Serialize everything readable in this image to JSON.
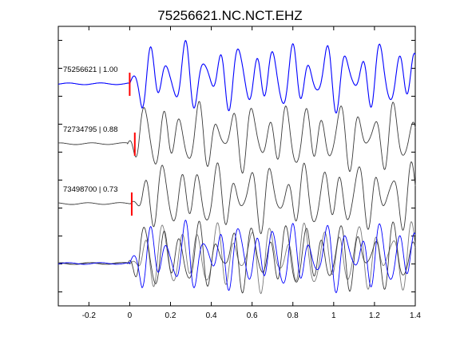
{
  "chart_data": {
    "type": "line",
    "title": "75256621.NC.NCT.EHZ",
    "xlabel": "",
    "ylabel": "",
    "xlim": [
      -0.35,
      1.4
    ],
    "x_ticks": [
      -0.2,
      0,
      0.2,
      0.4,
      0.6,
      0.8,
      1,
      1.2,
      1.4
    ],
    "x_tick_labels": [
      "-0.2",
      "0",
      "0.2",
      "0.4",
      "0.6",
      "0.8",
      "1",
      "1.2",
      "1.4"
    ],
    "y_tick_count": 10,
    "grid": false,
    "legend": "none",
    "colors": {
      "reference": "#0000ff",
      "match": "#3a3a3a",
      "match_overlay": "#7a7a7a",
      "pick": "#ff0000",
      "axis": "#000000"
    },
    "traces": [
      {
        "name": "75256621 | 1.00",
        "color": "#0000ff",
        "pick_time": 0.0,
        "offset": 0
      },
      {
        "name": "72734795 | 0.88",
        "color": "#3a3a3a",
        "pick_time": 0.025,
        "offset": -0.01
      },
      {
        "name": "73498700 | 0.73",
        "color": "#3a3a3a",
        "pick_time": 0.01,
        "offset": 0.005
      }
    ],
    "overlay_panel": {
      "description_shown": false,
      "series": [
        "72734795",
        "73498700",
        "75256621"
      ]
    }
  }
}
